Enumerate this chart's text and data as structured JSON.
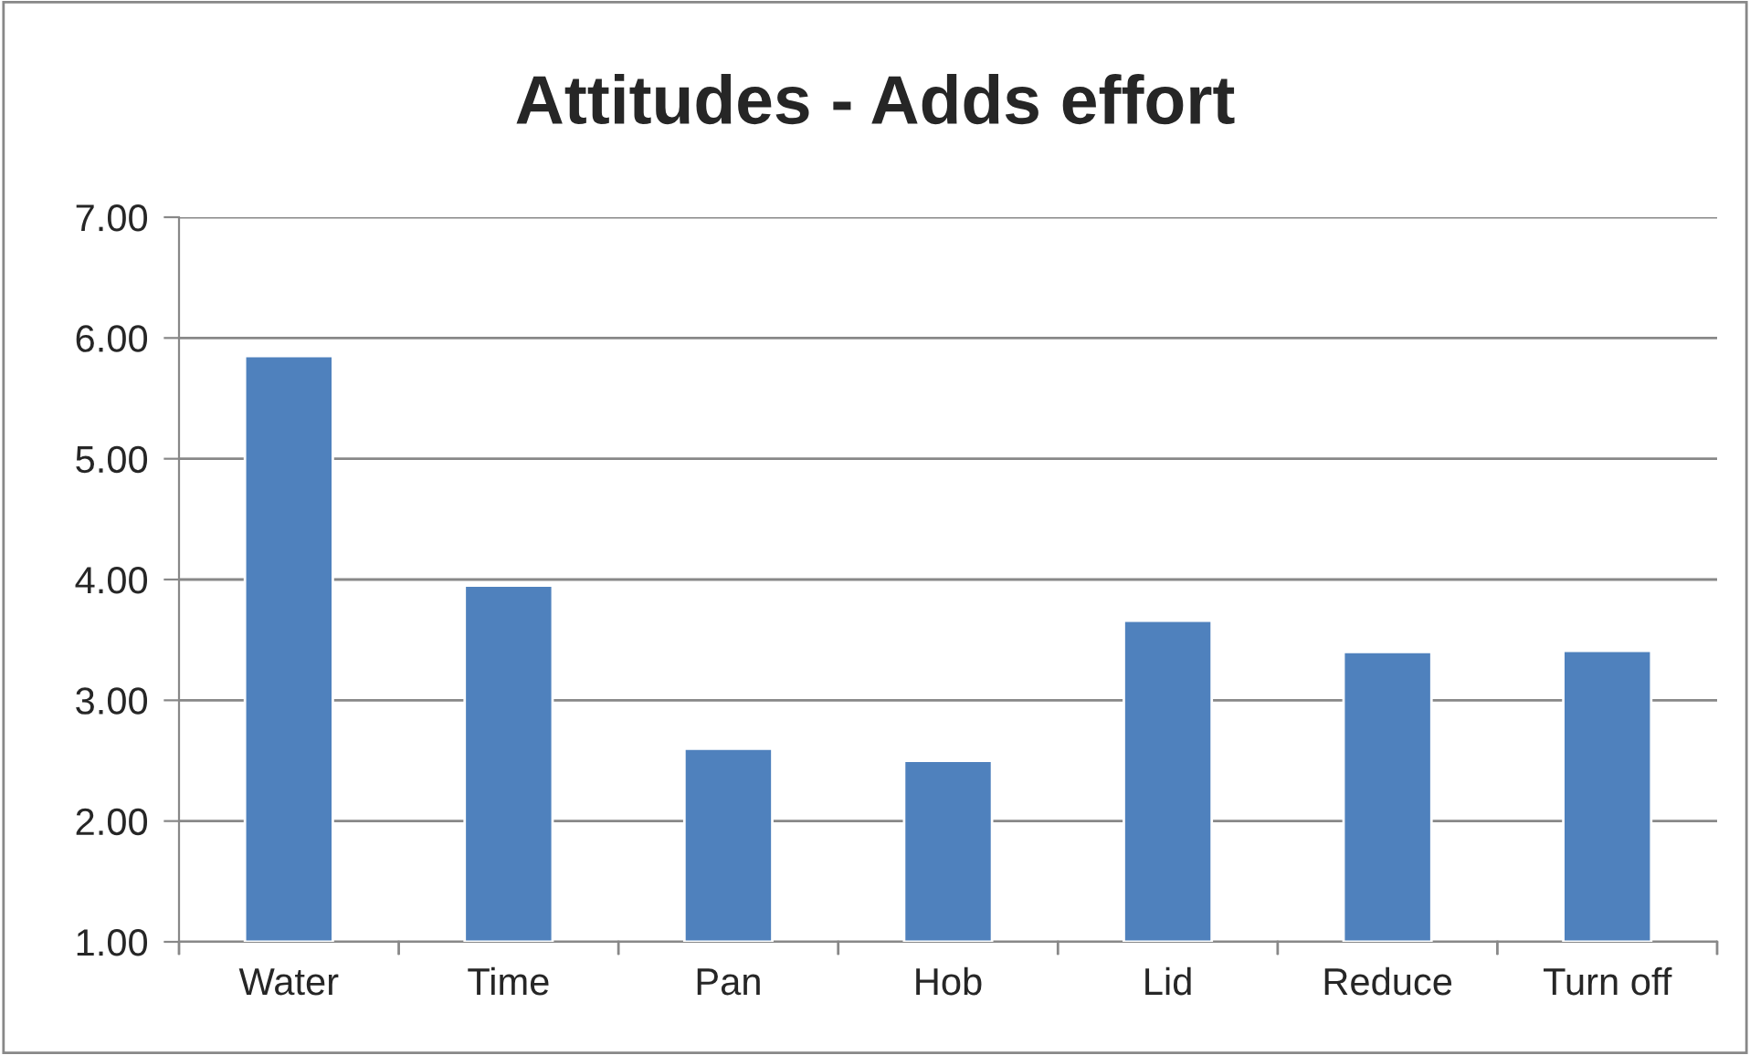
{
  "chart_data": {
    "type": "bar",
    "title": "Attitudes - Adds effort",
    "categories": [
      "Water",
      "Time",
      "Pan",
      "Hob",
      "Lid",
      "Reduce",
      "Turn off"
    ],
    "values": [
      5.85,
      3.95,
      2.6,
      2.5,
      3.66,
      3.4,
      3.41
    ],
    "color": "#4f81bd",
    "ylim": [
      1,
      7
    ],
    "yticks": [
      {
        "value": 1,
        "label": "1.00"
      },
      {
        "value": 2,
        "label": "2.00"
      },
      {
        "value": 3,
        "label": "3.00"
      },
      {
        "value": 4,
        "label": "4.00"
      },
      {
        "value": 5,
        "label": "5.00"
      },
      {
        "value": 6,
        "label": "6.00"
      },
      {
        "value": 7,
        "label": "7.00"
      }
    ],
    "grid": "y",
    "legend": false
  }
}
